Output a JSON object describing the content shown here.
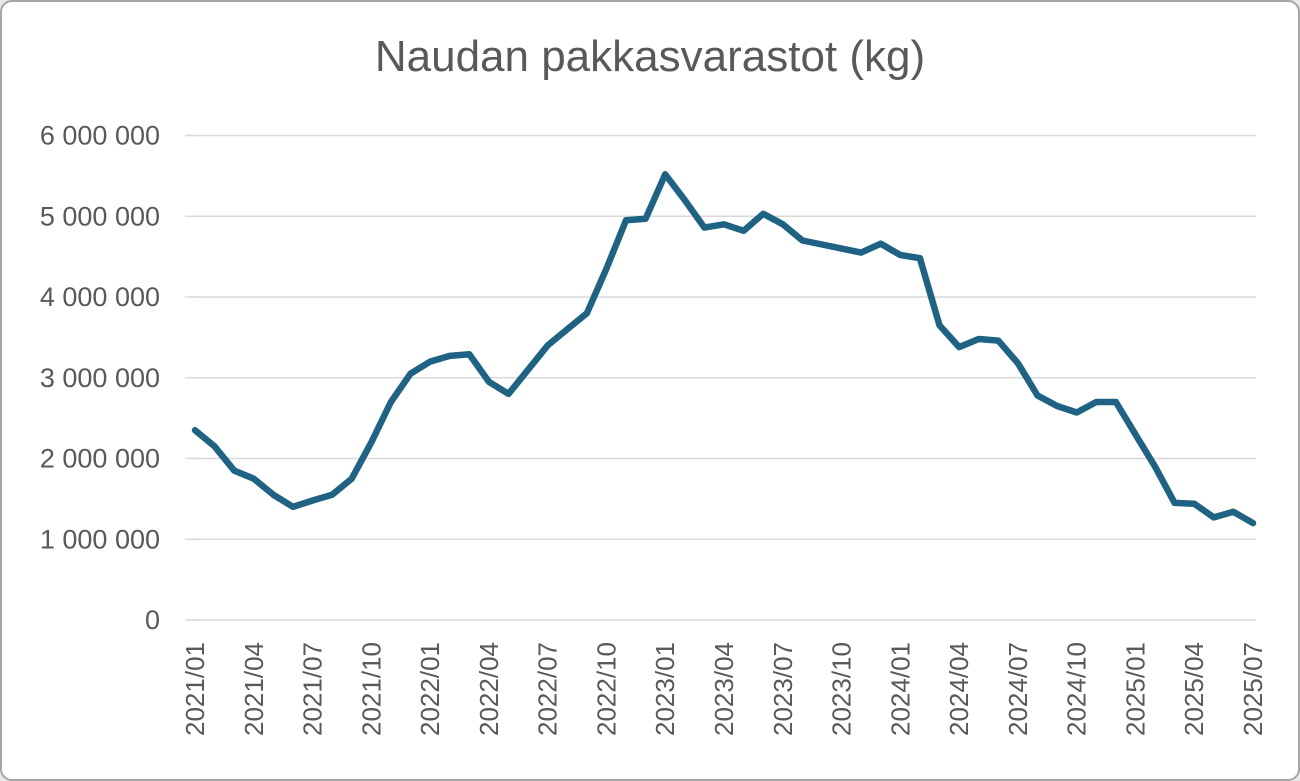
{
  "window": {
    "background": "#ffffff",
    "border_color": "#a6a6a6"
  },
  "chart_data": {
    "type": "line",
    "title": "Naudan pakkasvarastot (kg)",
    "xlabel": "",
    "ylabel": "",
    "grid": true,
    "legend": false,
    "colors": {
      "series": "#1f6384",
      "gridline": "#d9d9d9",
      "tick": "#bfbfbf",
      "text": "#595959"
    },
    "y_axis": {
      "min": 0,
      "max": 6000000,
      "step": 1000000,
      "tick_labels": [
        "0",
        "1 000 000",
        "2 000 000",
        "3 000 000",
        "4 000 000",
        "5 000 000",
        "6 000 000"
      ]
    },
    "x_tick_labels": [
      "2021/01",
      "2021/04",
      "2021/07",
      "2021/10",
      "2022/01",
      "2022/04",
      "2022/07",
      "2022/10",
      "2023/01",
      "2023/04",
      "2023/07",
      "2023/10",
      "2024/01",
      "2024/04",
      "2024/07",
      "2024/10",
      "2025/01",
      "2025/04",
      "2025/07"
    ],
    "x": [
      "2021/01",
      "2021/02",
      "2021/03",
      "2021/04",
      "2021/05",
      "2021/06",
      "2021/07",
      "2021/08",
      "2021/09",
      "2021/10",
      "2021/11",
      "2021/12",
      "2022/01",
      "2022/02",
      "2022/03",
      "2022/04",
      "2022/05",
      "2022/06",
      "2022/07",
      "2022/08",
      "2022/09",
      "2022/10",
      "2022/11",
      "2022/12",
      "2023/01",
      "2023/02",
      "2023/03",
      "2023/04",
      "2023/05",
      "2023/06",
      "2023/07",
      "2023/08",
      "2023/09",
      "2023/10",
      "2023/11",
      "2023/12",
      "2024/01",
      "2024/02",
      "2024/03",
      "2024/04",
      "2024/05",
      "2024/06",
      "2024/07",
      "2024/08",
      "2024/09",
      "2024/10",
      "2024/11",
      "2024/12",
      "2025/01",
      "2025/02",
      "2025/03",
      "2025/04",
      "2025/05",
      "2025/06",
      "2025/07"
    ],
    "series": [
      {
        "name": "Naudan pakkasvarastot (kg)",
        "color": "#1f6384",
        "values": [
          2350000,
          2150000,
          1850000,
          1750000,
          1550000,
          1400000,
          1480000,
          1550000,
          1750000,
          2200000,
          2700000,
          3050000,
          3200000,
          3270000,
          3290000,
          2950000,
          2800000,
          3100000,
          3400000,
          3600000,
          3800000,
          4350000,
          4950000,
          4970000,
          5520000,
          5200000,
          4860000,
          4900000,
          4820000,
          5030000,
          4900000,
          4700000,
          4650000,
          4600000,
          4550000,
          4660000,
          4520000,
          4480000,
          3650000,
          3380000,
          3480000,
          3460000,
          3180000,
          2780000,
          2650000,
          2570000,
          2700000,
          2700000,
          2300000,
          1900000,
          1450000,
          1440000,
          1270000,
          1340000,
          1200000
        ]
      }
    ]
  }
}
